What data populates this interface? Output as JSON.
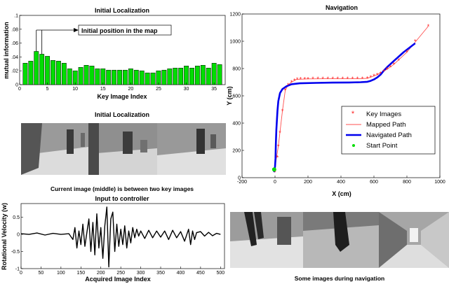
{
  "chart_data": [
    {
      "id": "loc",
      "type": "bar",
      "title": "Initial Localization",
      "xlabel": "Key Image Index",
      "ylabel": "mutual information",
      "xlim": [
        0,
        37
      ],
      "ylim": [
        0,
        0.1
      ],
      "xticks": [
        0,
        5,
        10,
        15,
        20,
        25,
        30,
        35
      ],
      "yticks": [
        0,
        0.02,
        0.04,
        0.06,
        0.08,
        0.1
      ],
      "ytick_labels": [
        "0",
        ".02",
        ".04",
        ".06",
        ".08",
        ".1"
      ],
      "bar_color": "#00dd00",
      "categories": [
        1,
        2,
        3,
        4,
        5,
        6,
        7,
        8,
        9,
        10,
        11,
        12,
        13,
        14,
        15,
        16,
        17,
        18,
        19,
        20,
        21,
        22,
        23,
        24,
        25,
        26,
        27,
        28,
        29,
        30,
        31,
        32,
        33,
        34,
        35,
        36
      ],
      "values": [
        0.031,
        0.034,
        0.048,
        0.044,
        0.041,
        0.035,
        0.034,
        0.031,
        0.023,
        0.02,
        0.025,
        0.028,
        0.027,
        0.023,
        0.023,
        0.021,
        0.021,
        0.021,
        0.021,
        0.023,
        0.021,
        0.02,
        0.017,
        0.017,
        0.02,
        0.021,
        0.023,
        0.024,
        0.024,
        0.027,
        0.024,
        0.027,
        0.028,
        0.024,
        0.031,
        0.029
      ],
      "annotation": "Initial position in the map",
      "annotation_points_to": [
        3,
        4
      ]
    },
    {
      "id": "nav",
      "type": "line",
      "title": "Navigation",
      "xlabel": "X (cm)",
      "ylabel": "Y (cm)",
      "xlim": [
        -200,
        1000
      ],
      "ylim": [
        0,
        1200
      ],
      "xticks": [
        -200,
        0,
        200,
        400,
        600,
        800,
        1000
      ],
      "yticks": [
        0,
        200,
        400,
        600,
        800,
        1000,
        1200
      ],
      "legend_position": "lower-right",
      "series": [
        {
          "name": "Key Images",
          "marker": "*",
          "color": "#ff2020",
          "x": [
            0,
            15,
            20,
            30,
            45,
            62,
            80,
            100,
            118,
            135,
            155,
            180,
            200,
            230,
            260,
            290,
            320,
            350,
            380,
            410,
            440,
            470,
            500,
            530,
            560,
            580,
            600,
            620,
            640,
            660,
            680,
            700,
            720,
            750,
            800,
            850,
            930
          ],
          "y": [
            40,
            150,
            230,
            330,
            490,
            640,
            680,
            700,
            712,
            720,
            722,
            723,
            724,
            725,
            725,
            725,
            725,
            725,
            725,
            725,
            725,
            725,
            725,
            726,
            728,
            735,
            745,
            755,
            765,
            780,
            795,
            810,
            830,
            860,
            920,
            1000,
            1110
          ]
        },
        {
          "name": "Mapped Path",
          "color": "#ff5050",
          "x": [
            -5,
            20,
            45,
            62,
            80,
            100,
            130,
            200,
            300,
            400,
            500,
            560,
            620,
            680,
            720,
            800,
            930
          ],
          "y": [
            40,
            230,
            490,
            640,
            680,
            700,
            720,
            724,
            725,
            725,
            725,
            728,
            755,
            795,
            830,
            920,
            1110
          ]
        },
        {
          "name": "Navigated Path",
          "color": "#0000ee",
          "x": [
            -5,
            0,
            3,
            5,
            8,
            12,
            15,
            20,
            30,
            45,
            70,
            100,
            150,
            250,
            350,
            450,
            520,
            560,
            580,
            600,
            620,
            640,
            660,
            680,
            720,
            780,
            850
          ],
          "y": [
            40,
            80,
            140,
            250,
            350,
            430,
            490,
            560,
            620,
            650,
            670,
            685,
            692,
            695,
            697,
            698,
            700,
            703,
            710,
            720,
            735,
            755,
            785,
            810,
            855,
            920,
            985
          ]
        },
        {
          "name": "Start Point",
          "marker": "o",
          "color": "#00dd00",
          "x": [
            -5
          ],
          "y": [
            60
          ]
        }
      ]
    },
    {
      "id": "ctrl",
      "type": "line",
      "title": "Input to controller",
      "xlabel": "Acquired Image Index",
      "ylabel": "Rotational Velocity (w)",
      "xlim": [
        0,
        510
      ],
      "ylim": [
        -1,
        0.9
      ],
      "xticks": [
        0,
        50,
        100,
        150,
        200,
        250,
        300,
        350,
        400,
        450,
        500
      ],
      "yticks": [
        -1,
        -0.5,
        0,
        0.5
      ],
      "series": [
        {
          "name": "",
          "color": "#000000",
          "x": [
            0,
            20,
            40,
            60,
            80,
            100,
            120,
            130,
            135,
            140,
            145,
            150,
            155,
            160,
            165,
            170,
            175,
            180,
            185,
            190,
            195,
            200,
            205,
            210,
            215,
            220,
            225,
            230,
            235,
            240,
            245,
            250,
            255,
            260,
            265,
            270,
            275,
            280,
            285,
            290,
            295,
            300,
            310,
            320,
            330,
            340,
            350,
            360,
            370,
            380,
            390,
            400,
            410,
            420,
            425,
            430,
            435,
            440,
            450,
            460,
            470,
            480,
            490,
            500
          ],
          "y": [
            0.02,
            0.0,
            0.04,
            -0.02,
            0.03,
            0.0,
            0.02,
            -0.15,
            0.2,
            -0.4,
            0.1,
            -0.3,
            0.3,
            -0.35,
            0.05,
            0.45,
            -0.5,
            0.35,
            -0.6,
            0.6,
            -0.4,
            0.2,
            -0.7,
            0.25,
            0.8,
            -0.95,
            0.45,
            0.65,
            -0.5,
            0.3,
            -0.35,
            0.15,
            -0.3,
            0.25,
            -0.4,
            0.1,
            -0.25,
            0.2,
            -0.1,
            0.15,
            -0.05,
            0.1,
            -0.12,
            0.12,
            -0.1,
            0.1,
            -0.08,
            0.1,
            -0.15,
            0.12,
            -0.1,
            0.08,
            -0.2,
            0.15,
            -0.3,
            0.1,
            -0.15,
            0.05,
            0.08,
            -0.05,
            0.06,
            -0.04,
            0.03,
            0.0
          ]
        }
      ]
    }
  ],
  "captions": {
    "middle_title": "Initial Localization",
    "current_image": "Current image (middle) is between two key images",
    "nav_images": "Some images during navigation"
  },
  "colors": {
    "wall": "#8a8a8a",
    "floor": "#d8d8d8",
    "door": "#404040"
  }
}
